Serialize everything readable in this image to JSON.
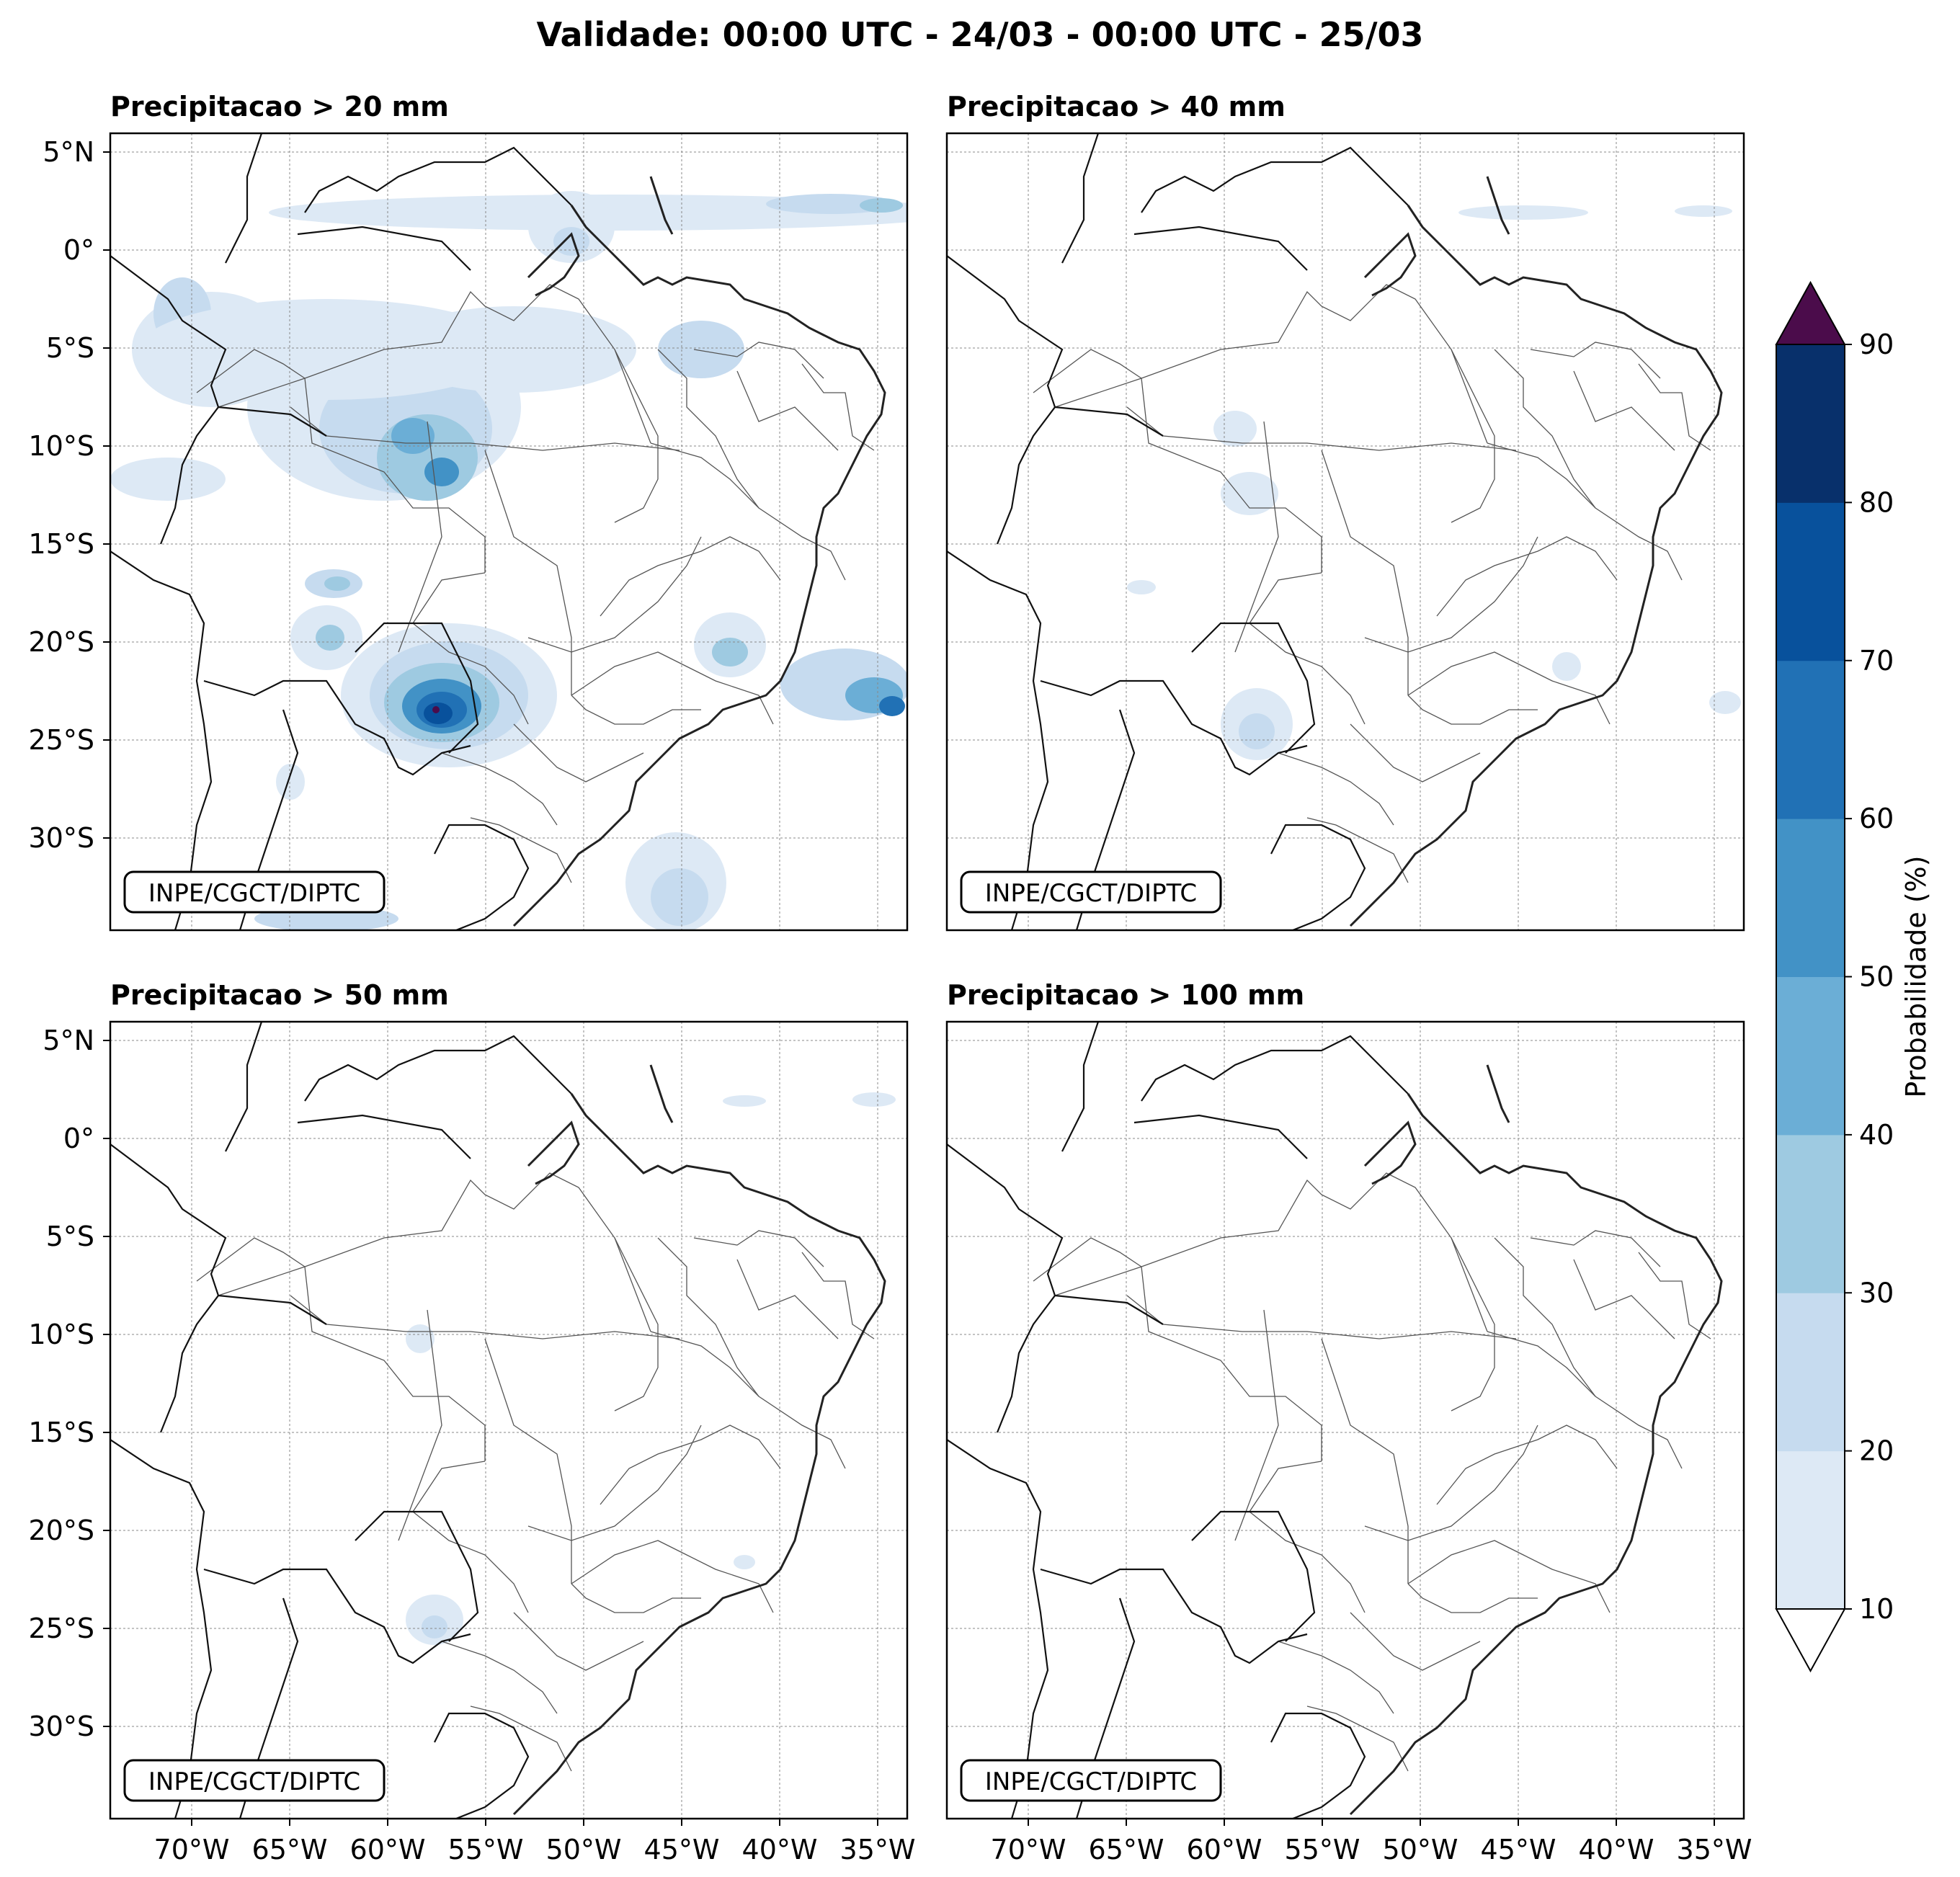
{
  "title": "Validade: 00:00 UTC - 24/03 - 00:00 UTC - 25/03",
  "panels": [
    {
      "title": "Precipitacao > 20 mm",
      "credit": "INPE/CGCT/DIPTC"
    },
    {
      "title": "Precipitacao > 40 mm",
      "credit": "INPE/CGCT/DIPTC"
    },
    {
      "title": "Precipitacao > 50 mm",
      "credit": "INPE/CGCT/DIPTC"
    },
    {
      "title": "Precipitacao > 100 mm",
      "credit": "INPE/CGCT/DIPTC"
    }
  ],
  "lat_labels": [
    "5°N",
    "0°",
    "5°S",
    "10°S",
    "15°S",
    "20°S",
    "25°S",
    "30°S"
  ],
  "lon_labels": [
    "70°W",
    "65°W",
    "60°W",
    "55°W",
    "50°W",
    "45°W",
    "40°W",
    "35°W"
  ],
  "colorbar": {
    "label": "Probabilidade (%)",
    "ticks": [
      "10",
      "20",
      "30",
      "40",
      "50",
      "60",
      "70",
      "80",
      "90"
    ],
    "colors": [
      "#dde9f5",
      "#c6dbef",
      "#9ecae1",
      "#6baed6",
      "#4292c6",
      "#2171b5",
      "#08519c",
      "#08306b"
    ],
    "over_color": "#4b0c4b",
    "under_color": "#ffffff"
  },
  "shading_colors": {
    "c1": "#dde9f5",
    "c2": "#c6dbef",
    "c3": "#9ecae1",
    "c4": "#6baed6",
    "c5": "#4292c6",
    "c6": "#2171b5",
    "c7": "#08519c",
    "c8": "#08306b",
    "top": "#4b0c4b"
  }
}
